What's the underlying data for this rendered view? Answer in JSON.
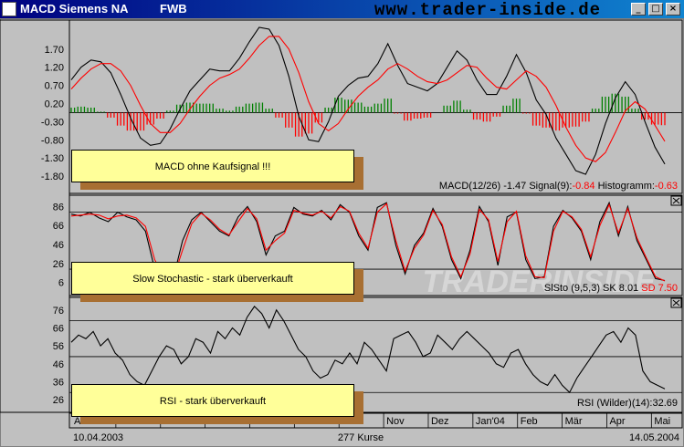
{
  "window": {
    "title": "MACD Siemens NA",
    "exchange": "FWB",
    "url_banner": "www.trader-inside.de",
    "min_glyph": "_",
    "max_glyph": "□",
    "close_glyph": "×"
  },
  "watermark": "TRADERINSIDE",
  "footer": {
    "start_date": "10.04.2003",
    "count": "277 Kurse",
    "end_date": "14.05.2004"
  },
  "chart_data": [
    {
      "type": "line",
      "panel": "MACD",
      "y_ticks": [
        "1.70",
        "1.20",
        "0.70",
        "0.20",
        "-0.30",
        "-0.80",
        "-1.30",
        "-1.80"
      ],
      "ylim": [
        -2.1,
        2.45
      ],
      "zero_line": -0.05,
      "readout": {
        "prefix": "MACD(12/26) -1.47 Signal(9):",
        "signal_value": "-0.84",
        "mid": " Histogramm:",
        "hist_value": "-0.63"
      },
      "annotation": "MACD ohne Kaufsignal !!!",
      "series": [
        {
          "color": "#000000",
          "values": [
            0.85,
            1.2,
            1.4,
            1.35,
            1.05,
            0.45,
            -0.2,
            -0.75,
            -0.95,
            -0.9,
            -0.5,
            0.05,
            0.55,
            0.85,
            1.15,
            1.1,
            1.1,
            1.45,
            1.9,
            2.3,
            2.25,
            1.8,
            0.95,
            -0.15,
            -0.8,
            -0.85,
            -0.3,
            0.4,
            0.7,
            0.9,
            0.95,
            1.3,
            1.85,
            1.25,
            0.75,
            0.65,
            0.55,
            0.75,
            1.2,
            1.65,
            1.4,
            0.85,
            0.45,
            0.45,
            0.95,
            1.55,
            1.05,
            0.3,
            -0.1,
            -0.75,
            -1.2,
            -1.65,
            -1.75,
            -1.2,
            -0.35,
            0.35,
            0.8,
            0.45,
            -0.3,
            -1.0,
            -1.47
          ]
        },
        {
          "color": "#ff0000",
          "values": [
            0.6,
            0.9,
            1.15,
            1.3,
            1.3,
            1.1,
            0.7,
            0.15,
            -0.35,
            -0.6,
            -0.6,
            -0.35,
            0.05,
            0.4,
            0.7,
            0.9,
            1.0,
            1.15,
            1.45,
            1.8,
            2.05,
            2.05,
            1.7,
            1.05,
            0.25,
            -0.35,
            -0.55,
            -0.35,
            0.05,
            0.4,
            0.65,
            0.85,
            1.15,
            1.3,
            1.15,
            0.95,
            0.8,
            0.75,
            0.85,
            1.05,
            1.25,
            1.2,
            0.9,
            0.65,
            0.6,
            0.85,
            1.1,
            0.95,
            0.65,
            0.15,
            -0.45,
            -0.95,
            -1.3,
            -1.4,
            -1.15,
            -0.6,
            0.0,
            0.25,
            0.05,
            -0.4,
            -0.84
          ]
        }
      ]
    },
    {
      "type": "line",
      "panel": "Slow Stochastic",
      "y_ticks": [
        "86",
        "66",
        "46",
        "26",
        "6"
      ],
      "ylim": [
        -4,
        96
      ],
      "hlines": [
        80,
        20
      ],
      "readout": {
        "prefix": "SlSto (9,5,3) SK 8.01 ",
        "sd_value": "SD 7.50"
      },
      "annotation": "Slow Stochastic - stark überverkauft",
      "series": [
        {
          "color": "#000000",
          "values": [
            78,
            76,
            80,
            74,
            70,
            80,
            75,
            72,
            60,
            20,
            8,
            10,
            50,
            72,
            80,
            70,
            60,
            55,
            75,
            86,
            70,
            35,
            55,
            60,
            85,
            78,
            76,
            82,
            72,
            88,
            80,
            55,
            40,
            85,
            90,
            45,
            15,
            45,
            58,
            84,
            65,
            30,
            10,
            40,
            86,
            70,
            24,
            75,
            80,
            30,
            10,
            12,
            65,
            82,
            74,
            60,
            30,
            70,
            90,
            55,
            86,
            50,
            30,
            10,
            8
          ]
        },
        {
          "color": "#ff0000",
          "values": [
            76,
            77,
            78,
            77,
            73,
            76,
            77,
            74,
            65,
            30,
            12,
            10,
            40,
            68,
            79,
            72,
            62,
            56,
            70,
            84,
            73,
            40,
            50,
            58,
            82,
            79,
            77,
            81,
            74,
            86,
            81,
            58,
            42,
            80,
            89,
            50,
            18,
            42,
            56,
            82,
            67,
            33,
            12,
            36,
            83,
            72,
            28,
            70,
            81,
            34,
            12,
            11,
            60,
            81,
            75,
            62,
            33,
            66,
            88,
            58,
            84,
            53,
            32,
            12,
            7.5
          ]
        }
      ]
    },
    {
      "type": "line",
      "panel": "RSI",
      "y_ticks": [
        "76",
        "66",
        "56",
        "46",
        "36",
        "26"
      ],
      "ylim": [
        23,
        82
      ],
      "hlines": [
        70,
        50,
        30
      ],
      "readout": "RSI (Wilder)(14):32.69",
      "annotation": "RSI - stark überverkauft",
      "series": [
        {
          "color": "#000000",
          "values": [
            58,
            62,
            60,
            64,
            56,
            60,
            52,
            48,
            40,
            36,
            34,
            42,
            50,
            56,
            54,
            46,
            50,
            60,
            58,
            52,
            64,
            60,
            66,
            62,
            72,
            78,
            74,
            66,
            76,
            70,
            62,
            54,
            50,
            42,
            38,
            40,
            48,
            46,
            52,
            46,
            58,
            54,
            48,
            42,
            60,
            62,
            64,
            58,
            50,
            52,
            62,
            58,
            54,
            60,
            64,
            60,
            56,
            52,
            46,
            44,
            52,
            54,
            46,
            40,
            36,
            34,
            40,
            34,
            30,
            38,
            44,
            50,
            56,
            62,
            64,
            58,
            66,
            62,
            42,
            36,
            34,
            32
          ]
        }
      ]
    }
  ],
  "x_axis": {
    "months": [
      "A",
      "",
      "",
      "",
      "",
      "",
      "",
      "Nov",
      "Dez",
      "Jan'04",
      "Feb",
      "Mär",
      "Apr",
      "Mai"
    ]
  }
}
